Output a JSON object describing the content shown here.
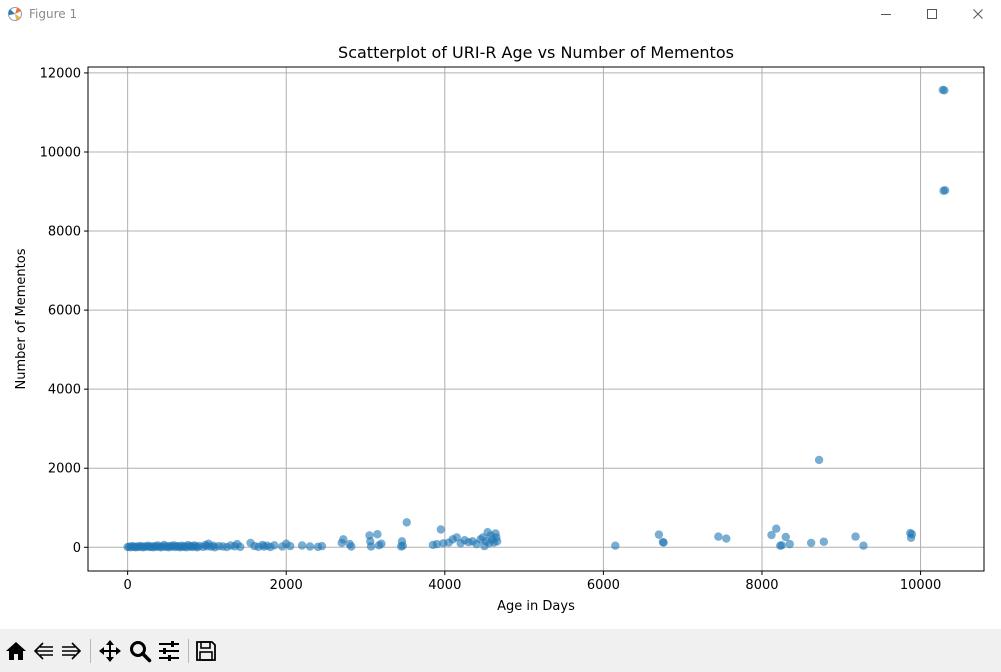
{
  "window": {
    "title": "Figure 1",
    "icons": [
      "matplotlib-icon",
      "minimize-icon",
      "maximize-icon",
      "close-icon"
    ]
  },
  "toolbar": {
    "icons": [
      "home-icon",
      "back-icon",
      "forward-icon",
      "pan-icon",
      "zoom-icon",
      "configure-subplots-icon",
      "save-icon"
    ]
  },
  "chart_data": {
    "type": "scatter",
    "title": "Scatterplot of URI-R Age vs Number of Mementos",
    "xlabel": "Age in Days",
    "ylabel": "Number of Mementos",
    "xlim": [
      -500,
      10800
    ],
    "ylim": [
      -600,
      12150
    ],
    "xticks": [
      0,
      2000,
      4000,
      6000,
      8000,
      10000
    ],
    "yticks": [
      0,
      2000,
      4000,
      6000,
      8000,
      10000,
      12000
    ],
    "grid": true,
    "point_color": "#1f77b4",
    "point_alpha": 0.6,
    "points": [
      [
        0,
        5
      ],
      [
        20,
        15
      ],
      [
        40,
        0
      ],
      [
        60,
        30
      ],
      [
        80,
        10
      ],
      [
        100,
        0
      ],
      [
        120,
        20
      ],
      [
        140,
        5
      ],
      [
        160,
        35
      ],
      [
        180,
        10
      ],
      [
        200,
        0
      ],
      [
        220,
        25
      ],
      [
        240,
        15
      ],
      [
        260,
        40
      ],
      [
        280,
        5
      ],
      [
        300,
        20
      ],
      [
        320,
        0
      ],
      [
        340,
        30
      ],
      [
        360,
        10
      ],
      [
        380,
        45
      ],
      [
        400,
        15
      ],
      [
        420,
        0
      ],
      [
        440,
        20
      ],
      [
        460,
        60
      ],
      [
        480,
        10
      ],
      [
        500,
        25
      ],
      [
        520,
        0
      ],
      [
        540,
        35
      ],
      [
        560,
        15
      ],
      [
        580,
        50
      ],
      [
        600,
        5
      ],
      [
        620,
        30
      ],
      [
        640,
        20
      ],
      [
        660,
        0
      ],
      [
        680,
        40
      ],
      [
        700,
        10
      ],
      [
        720,
        25
      ],
      [
        740,
        0
      ],
      [
        760,
        55
      ],
      [
        780,
        15
      ],
      [
        800,
        30
      ],
      [
        820,
        5
      ],
      [
        840,
        45
      ],
      [
        860,
        20
      ],
      [
        880,
        0
      ],
      [
        900,
        35
      ],
      [
        950,
        10
      ],
      [
        980,
        60
      ],
      [
        1000,
        25
      ],
      [
        1020,
        90
      ],
      [
        1050,
        15
      ],
      [
        1080,
        40
      ],
      [
        1100,
        0
      ],
      [
        1150,
        30
      ],
      [
        1200,
        20
      ],
      [
        1250,
        5
      ],
      [
        1300,
        45
      ],
      [
        1350,
        25
      ],
      [
        1380,
        80
      ],
      [
        1420,
        10
      ],
      [
        1550,
        110
      ],
      [
        1600,
        30
      ],
      [
        1650,
        10
      ],
      [
        1700,
        60
      ],
      [
        1720,
        20
      ],
      [
        1760,
        40
      ],
      [
        1800,
        5
      ],
      [
        1850,
        50
      ],
      [
        1950,
        20
      ],
      [
        2000,
        90
      ],
      [
        2050,
        30
      ],
      [
        2200,
        45
      ],
      [
        2300,
        20
      ],
      [
        2400,
        10
      ],
      [
        2450,
        30
      ],
      [
        2700,
        110
      ],
      [
        2720,
        200
      ],
      [
        2800,
        80
      ],
      [
        2820,
        20
      ],
      [
        3050,
        300
      ],
      [
        3060,
        150
      ],
      [
        3070,
        20
      ],
      [
        3150,
        330
      ],
      [
        3170,
        50
      ],
      [
        3200,
        90
      ],
      [
        3450,
        20
      ],
      [
        3460,
        150
      ],
      [
        3470,
        40
      ],
      [
        3520,
        630
      ],
      [
        3850,
        60
      ],
      [
        3900,
        80
      ],
      [
        3950,
        450
      ],
      [
        3980,
        100
      ],
      [
        4050,
        120
      ],
      [
        4100,
        200
      ],
      [
        4150,
        250
      ],
      [
        4200,
        100
      ],
      [
        4250,
        180
      ],
      [
        4300,
        130
      ],
      [
        4350,
        150
      ],
      [
        4400,
        80
      ],
      [
        4450,
        200
      ],
      [
        4480,
        250
      ],
      [
        4500,
        30
      ],
      [
        4520,
        150
      ],
      [
        4540,
        380
      ],
      [
        4560,
        100
      ],
      [
        4580,
        300
      ],
      [
        4600,
        200
      ],
      [
        4620,
        120
      ],
      [
        4640,
        350
      ],
      [
        4650,
        250
      ],
      [
        4660,
        150
      ],
      [
        6150,
        40
      ],
      [
        6700,
        320
      ],
      [
        6750,
        130
      ],
      [
        6760,
        120
      ],
      [
        7450,
        270
      ],
      [
        7550,
        220
      ],
      [
        8120,
        310
      ],
      [
        8180,
        470
      ],
      [
        8230,
        40
      ],
      [
        8250,
        50
      ],
      [
        8300,
        260
      ],
      [
        8350,
        80
      ],
      [
        8620,
        110
      ],
      [
        8720,
        2210
      ],
      [
        8780,
        140
      ],
      [
        9180,
        270
      ],
      [
        9280,
        40
      ],
      [
        9870,
        360
      ],
      [
        9880,
        240
      ],
      [
        9890,
        330
      ],
      [
        10280,
        11570
      ],
      [
        10300,
        11560
      ],
      [
        10290,
        9020
      ],
      [
        10310,
        9030
      ]
    ]
  }
}
